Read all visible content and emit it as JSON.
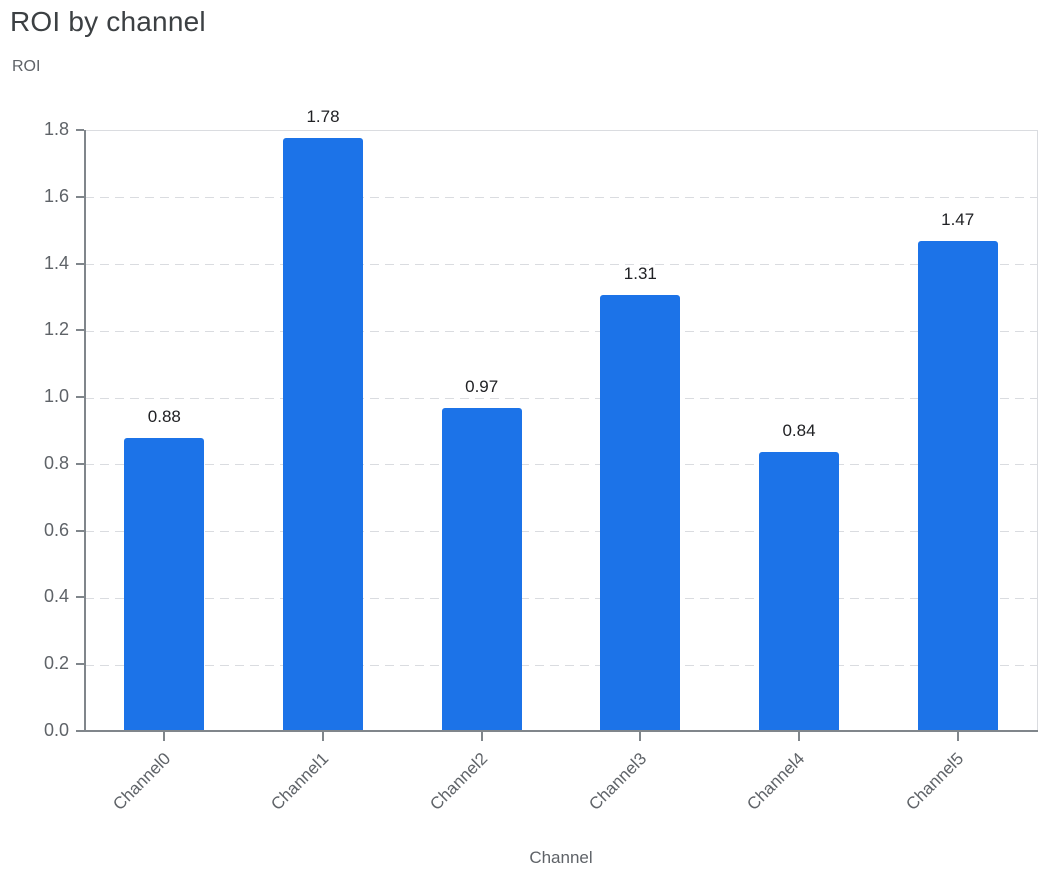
{
  "title": "ROI by channel",
  "y_axis_title": "ROI",
  "x_axis_title": "Channel",
  "chart_data": {
    "type": "bar",
    "title": "ROI by channel",
    "categories": [
      "Channel0",
      "Channel1",
      "Channel2",
      "Channel3",
      "Channel4",
      "Channel5"
    ],
    "values": [
      0.88,
      1.78,
      0.97,
      1.31,
      0.84,
      1.47
    ],
    "value_labels": [
      "0.88",
      "1.78",
      "0.97",
      "1.31",
      "0.84",
      "1.47"
    ],
    "xlabel": "Channel",
    "ylabel": "ROI",
    "ylim": [
      0,
      1.8
    ],
    "ytick_labels": [
      "0.0",
      "0.2",
      "0.4",
      "0.6",
      "0.8",
      "1.0",
      "1.2",
      "1.4",
      "1.6",
      "1.8"
    ],
    "grid": "horizontal-dashed",
    "legend": "none",
    "x_label_rotation_deg": -45,
    "colors": {
      "bar": "#1c73e8",
      "gridline": "#dadce0",
      "axis": "#80868b",
      "tick_label": "#5f6368",
      "value_label": "#202124",
      "title": "#3c4043"
    }
  }
}
